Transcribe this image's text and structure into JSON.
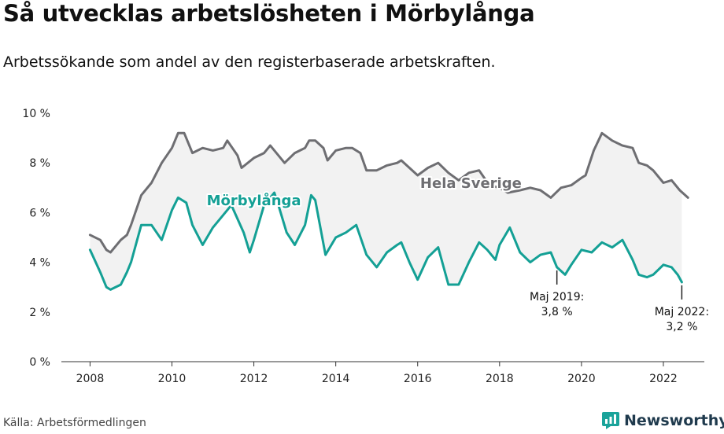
{
  "header": {
    "title": "Så utvecklas arbetslösheten i Mörbylånga",
    "subtitle": "Arbetssökande som andel av den registerbaserade arbetskraften."
  },
  "footer": {
    "source": "Källa: Arbetsförmedlingen",
    "brand": "Newsworthy"
  },
  "chart_data": {
    "type": "line",
    "title": "Så utvecklas arbetslösheten i Mörbylånga",
    "subtitle": "Arbetssökande som andel av den registerbaserade arbetskraften.",
    "xlabel": "",
    "ylabel": "",
    "x_unit": "year",
    "xlim": [
      2007.3,
      2023.0
    ],
    "ylim": [
      0,
      10
    ],
    "x_ticks": [
      2008,
      2010,
      2012,
      2014,
      2016,
      2018,
      2020,
      2022
    ],
    "x_tick_labels": [
      "2008",
      "2010",
      "2012",
      "2014",
      "2016",
      "2018",
      "2020",
      "2022"
    ],
    "y_ticks": [
      0,
      2,
      4,
      6,
      8,
      10
    ],
    "y_tick_labels": [
      "0 %",
      "2 %",
      "4 %",
      "6 %",
      "8 %",
      "10 %"
    ],
    "grid": false,
    "colors": {
      "sverige": "#6e6e72",
      "morbylanga": "#14a095",
      "band": "#f2f2f2"
    },
    "series": [
      {
        "name": "Hela Sverige",
        "points": [
          [
            2008.0,
            5.1
          ],
          [
            2008.25,
            4.9
          ],
          [
            2008.4,
            4.5
          ],
          [
            2008.5,
            4.4
          ],
          [
            2008.75,
            4.9
          ],
          [
            2008.9,
            5.1
          ],
          [
            2009.0,
            5.5
          ],
          [
            2009.25,
            6.7
          ],
          [
            2009.5,
            7.2
          ],
          [
            2009.75,
            8.0
          ],
          [
            2010.0,
            8.6
          ],
          [
            2010.15,
            9.2
          ],
          [
            2010.3,
            9.2
          ],
          [
            2010.5,
            8.4
          ],
          [
            2010.75,
            8.6
          ],
          [
            2011.0,
            8.5
          ],
          [
            2011.25,
            8.6
          ],
          [
            2011.35,
            8.9
          ],
          [
            2011.6,
            8.3
          ],
          [
            2011.7,
            7.8
          ],
          [
            2012.0,
            8.2
          ],
          [
            2012.25,
            8.4
          ],
          [
            2012.4,
            8.7
          ],
          [
            2012.6,
            8.3
          ],
          [
            2012.75,
            8.0
          ],
          [
            2013.0,
            8.4
          ],
          [
            2013.25,
            8.6
          ],
          [
            2013.35,
            8.9
          ],
          [
            2013.5,
            8.9
          ],
          [
            2013.7,
            8.6
          ],
          [
            2013.8,
            8.1
          ],
          [
            2014.0,
            8.5
          ],
          [
            2014.25,
            8.6
          ],
          [
            2014.4,
            8.6
          ],
          [
            2014.6,
            8.4
          ],
          [
            2014.75,
            7.7
          ],
          [
            2015.0,
            7.7
          ],
          [
            2015.25,
            7.9
          ],
          [
            2015.5,
            8.0
          ],
          [
            2015.6,
            8.1
          ],
          [
            2015.8,
            7.8
          ],
          [
            2016.0,
            7.5
          ],
          [
            2016.25,
            7.8
          ],
          [
            2016.5,
            8.0
          ],
          [
            2016.75,
            7.6
          ],
          [
            2017.0,
            7.3
          ],
          [
            2017.25,
            7.6
          ],
          [
            2017.5,
            7.7
          ],
          [
            2017.75,
            7.1
          ],
          [
            2018.0,
            7.0
          ],
          [
            2018.2,
            6.8
          ],
          [
            2018.5,
            6.9
          ],
          [
            2018.75,
            7.0
          ],
          [
            2019.0,
            6.9
          ],
          [
            2019.25,
            6.6
          ],
          [
            2019.5,
            7.0
          ],
          [
            2019.75,
            7.1
          ],
          [
            2020.0,
            7.4
          ],
          [
            2020.1,
            7.5
          ],
          [
            2020.3,
            8.5
          ],
          [
            2020.5,
            9.2
          ],
          [
            2020.75,
            8.9
          ],
          [
            2021.0,
            8.7
          ],
          [
            2021.25,
            8.6
          ],
          [
            2021.4,
            8.0
          ],
          [
            2021.6,
            7.9
          ],
          [
            2021.75,
            7.7
          ],
          [
            2022.0,
            7.2
          ],
          [
            2022.2,
            7.3
          ],
          [
            2022.4,
            6.9
          ],
          [
            2022.6,
            6.6
          ]
        ]
      },
      {
        "name": "Mörbylånga",
        "points": [
          [
            2008.0,
            4.5
          ],
          [
            2008.25,
            3.6
          ],
          [
            2008.4,
            3.0
          ],
          [
            2008.5,
            2.9
          ],
          [
            2008.75,
            3.1
          ],
          [
            2008.9,
            3.6
          ],
          [
            2009.0,
            4.0
          ],
          [
            2009.25,
            5.5
          ],
          [
            2009.5,
            5.5
          ],
          [
            2009.75,
            4.9
          ],
          [
            2010.0,
            6.1
          ],
          [
            2010.15,
            6.6
          ],
          [
            2010.35,
            6.4
          ],
          [
            2010.5,
            5.5
          ],
          [
            2010.75,
            4.7
          ],
          [
            2011.0,
            5.4
          ],
          [
            2011.25,
            5.9
          ],
          [
            2011.45,
            6.3
          ],
          [
            2011.75,
            5.2
          ],
          [
            2011.9,
            4.4
          ],
          [
            2012.0,
            4.9
          ],
          [
            2012.25,
            6.3
          ],
          [
            2012.5,
            6.8
          ],
          [
            2012.6,
            6.3
          ],
          [
            2012.8,
            5.2
          ],
          [
            2013.0,
            4.7
          ],
          [
            2013.25,
            5.5
          ],
          [
            2013.4,
            6.7
          ],
          [
            2013.5,
            6.5
          ],
          [
            2013.75,
            4.3
          ],
          [
            2014.0,
            5.0
          ],
          [
            2014.25,
            5.2
          ],
          [
            2014.5,
            5.5
          ],
          [
            2014.75,
            4.3
          ],
          [
            2015.0,
            3.8
          ],
          [
            2015.25,
            4.4
          ],
          [
            2015.5,
            4.7
          ],
          [
            2015.6,
            4.8
          ],
          [
            2015.8,
            4.0
          ],
          [
            2016.0,
            3.3
          ],
          [
            2016.25,
            4.2
          ],
          [
            2016.5,
            4.6
          ],
          [
            2016.75,
            3.1
          ],
          [
            2017.0,
            3.1
          ],
          [
            2017.25,
            4.0
          ],
          [
            2017.5,
            4.8
          ],
          [
            2017.7,
            4.5
          ],
          [
            2017.9,
            4.1
          ],
          [
            2018.0,
            4.7
          ],
          [
            2018.25,
            5.4
          ],
          [
            2018.5,
            4.4
          ],
          [
            2018.75,
            4.0
          ],
          [
            2019.0,
            4.3
          ],
          [
            2019.25,
            4.4
          ],
          [
            2019.4,
            3.8
          ],
          [
            2019.6,
            3.5
          ],
          [
            2019.75,
            3.9
          ],
          [
            2020.0,
            4.5
          ],
          [
            2020.25,
            4.4
          ],
          [
            2020.5,
            4.8
          ],
          [
            2020.75,
            4.6
          ],
          [
            2021.0,
            4.9
          ],
          [
            2021.25,
            4.1
          ],
          [
            2021.4,
            3.5
          ],
          [
            2021.6,
            3.4
          ],
          [
            2021.75,
            3.5
          ],
          [
            2022.0,
            3.9
          ],
          [
            2022.2,
            3.8
          ],
          [
            2022.35,
            3.5
          ],
          [
            2022.45,
            3.2
          ]
        ]
      }
    ],
    "series_labels": [
      {
        "text": "Hela Sverige",
        "series": "Hela Sverige",
        "x": 2017.3,
        "y": 7.0
      },
      {
        "text": "Mörbylånga",
        "series": "Mörbylånga",
        "x": 2012.0,
        "y": 6.3
      }
    ],
    "annotations": [
      {
        "x": 2019.4,
        "y": 3.8,
        "lines": [
          "Maj 2019:",
          "3,8 %"
        ]
      },
      {
        "x": 2022.45,
        "y": 3.2,
        "lines": [
          "Maj 2022:",
          "3,2 %"
        ]
      }
    ]
  }
}
